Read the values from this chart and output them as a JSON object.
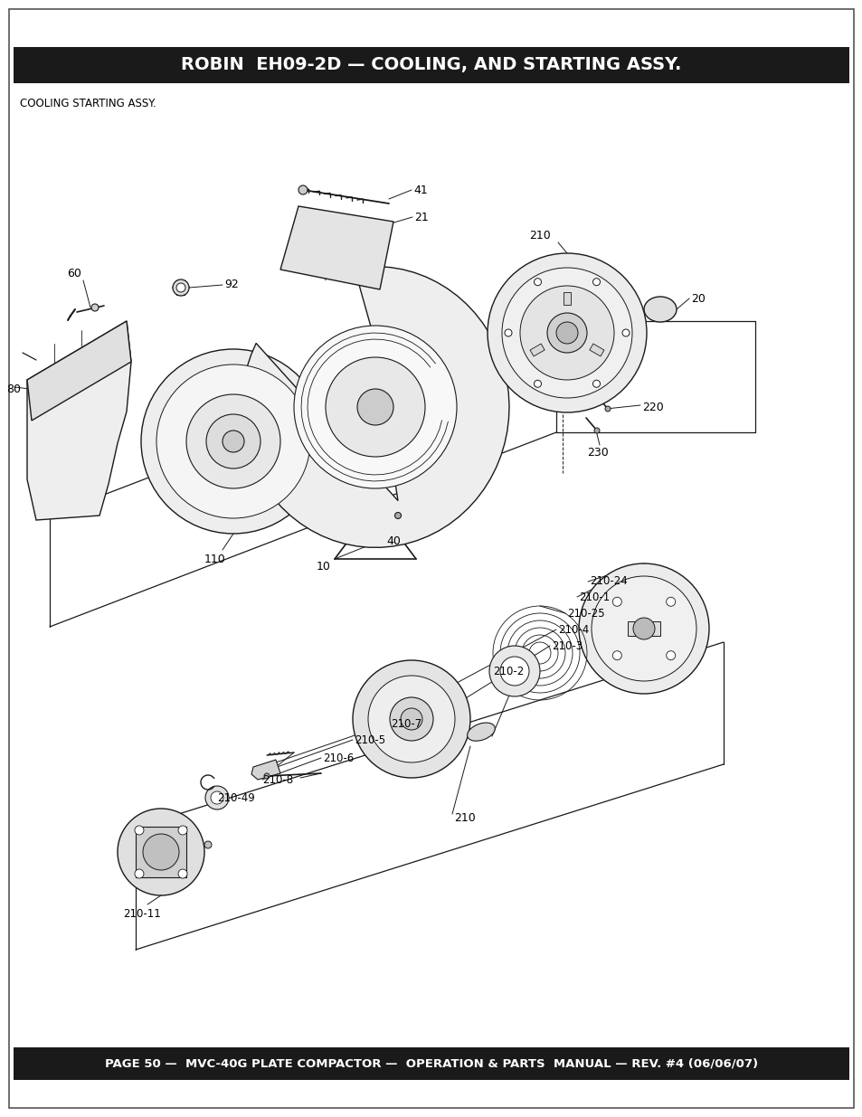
{
  "title": "ROBIN  EH09-2D — COOLING, AND STARTING ASSY.",
  "footer": "PAGE 50 —  MVC-40G PLATE COMPACTOR —  OPERATION & PARTS  MANUAL — REV. #4 (06/06/07)",
  "subtitle": "COOLING STARTING ASSY.",
  "title_bg": "#1a1a1a",
  "title_color": "#ffffff",
  "footer_bg": "#1a1a1a",
  "footer_color": "#ffffff",
  "bg_color": "#ffffff",
  "lc": "#1a1a1a",
  "title_fs": 14,
  "footer_fs": 9.5,
  "label_fs": 9,
  "small_label_fs": 8.5
}
